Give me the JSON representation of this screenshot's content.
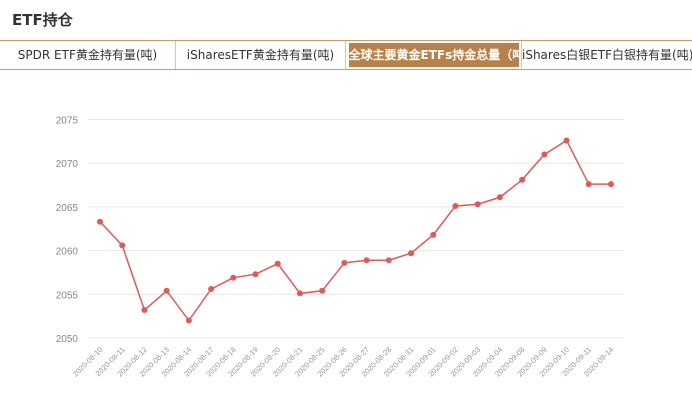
{
  "header": {
    "title": "ETF持仓"
  },
  "tabs": [
    {
      "label": "SPDR ETF黄金持有量(吨)",
      "active": false
    },
    {
      "label": "iSharesETF黄金持有量(吨)",
      "active": false
    },
    {
      "label": "全球主要黄金ETFs持金总量（吨）",
      "active": true
    },
    {
      "label": "iShares白银ETF白银持有量(吨)",
      "active": false
    }
  ],
  "colors": {
    "accent": "#b88149",
    "line": "#e05a5a",
    "grid": "#e6e6e6",
    "axis_text": "#888888"
  },
  "chart_data": {
    "type": "line",
    "x": [
      "2020-08-10",
      "2020-08-11",
      "2020-08-12",
      "2020-08-13",
      "2020-08-14",
      "2020-08-17",
      "2020-08-18",
      "2020-08-19",
      "2020-08-20",
      "2020-08-21",
      "2020-08-25",
      "2020-08-26",
      "2020-08-27",
      "2020-08-28",
      "2020-08-31",
      "2020-09-01",
      "2020-09-02",
      "2020-09-03",
      "2020-09-04",
      "2020-09-08",
      "2020-09-09",
      "2020-09-10",
      "2020-09-11",
      "2020-09-14"
    ],
    "series": [
      {
        "values": [
          2063.3,
          2060.6,
          2053.2,
          2055.4,
          2052.0,
          2055.6,
          2056.9,
          2057.3,
          2058.5,
          2055.1,
          2055.4,
          2058.6,
          2058.9,
          2058.9,
          2059.7,
          2061.8,
          2065.1,
          2065.3,
          2066.1,
          2068.1,
          2071.0,
          2072.6,
          2067.6,
          2067.6
        ]
      }
    ],
    "yticks": [
      2050,
      2055,
      2060,
      2065,
      2070,
      2075
    ],
    "ylim": [
      2050,
      2077
    ],
    "title": "",
    "xlabel": "",
    "ylabel": "",
    "grid": true
  }
}
